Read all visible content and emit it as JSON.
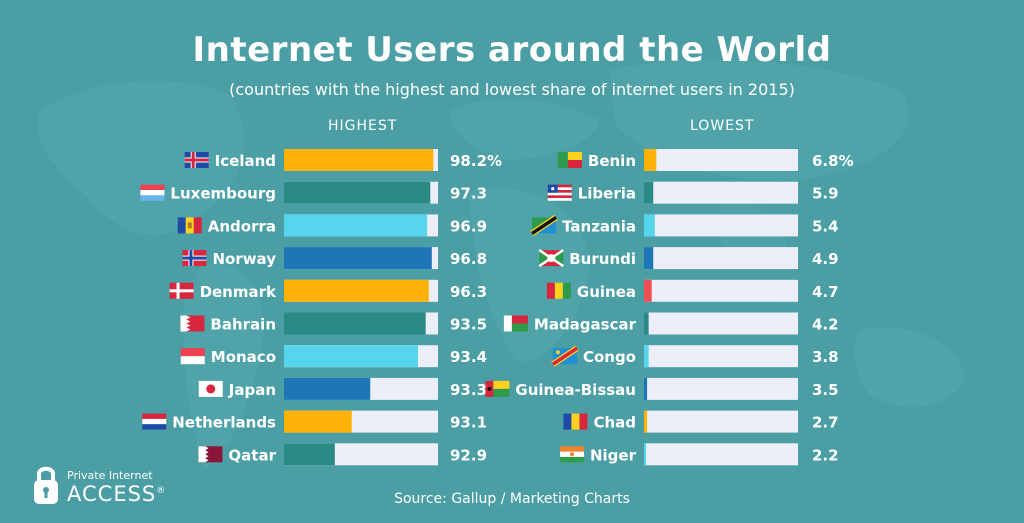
{
  "title": "Internet Users around the World",
  "subtitle": "(countries with the highest and lowest share of internet users in 2015)",
  "source": "Source: Gallup / Marketing Charts",
  "logo": {
    "line1": "Private Internet",
    "line2": "ACCESS",
    "mark": "®"
  },
  "colors": {
    "background": "#4a9ea4",
    "track": "#eceff7",
    "gold": "#ffb20a",
    "teal": "#2a8a86",
    "cyan": "#56d6ee",
    "blue": "#1e76b6",
    "red": "#f04f55"
  },
  "chart_data": [
    {
      "type": "bar",
      "orientation": "horizontal",
      "header": "HIGHEST",
      "xlim": [
        0,
        100
      ],
      "categories": [
        "Iceland",
        "Luxembourg",
        "Andorra",
        "Norway",
        "Denmark",
        "Bahrain",
        "Monaco",
        "Japan",
        "Netherlands",
        "Qatar"
      ],
      "values": [
        98.2,
        97.3,
        96.9,
        96.8,
        96.3,
        93.5,
        93.4,
        93.3,
        93.1,
        92.9
      ],
      "labels": [
        "98.2%",
        "97.3",
        "96.9",
        "96.8",
        "96.3",
        "93.5",
        "93.4",
        "93.3",
        "93.1",
        "92.9"
      ],
      "fill_fraction": [
        0.97,
        0.95,
        0.93,
        0.96,
        0.94,
        0.92,
        0.87,
        0.56,
        0.44,
        0.33
      ],
      "bar_colors": [
        "#ffb20a",
        "#2a8a86",
        "#56d6ee",
        "#1e76b6",
        "#ffb20a",
        "#2a8a86",
        "#56d6ee",
        "#1e76b6",
        "#ffb20a",
        "#2a8a86"
      ],
      "flags": [
        "iceland-flag",
        "luxembourg-flag",
        "andorra-flag",
        "norway-flag",
        "denmark-flag",
        "bahrain-flag",
        "monaco-flag",
        "japan-flag",
        "netherlands-flag",
        "qatar-flag"
      ]
    },
    {
      "type": "bar",
      "orientation": "horizontal",
      "header": "LOWEST",
      "xlim": [
        0,
        100
      ],
      "categories": [
        "Benin",
        "Liberia",
        "Tanzania",
        "Burundi",
        "Guinea",
        "Madagascar",
        "Congo",
        "Guinea-Bissau",
        "Chad",
        "Niger"
      ],
      "values": [
        6.8,
        5.9,
        5.4,
        4.9,
        4.7,
        4.2,
        3.8,
        3.5,
        2.7,
        2.2
      ],
      "labels": [
        "6.8%",
        "5.9",
        "5.4",
        "4.9",
        "4.7",
        "4.2",
        "3.8",
        "3.5",
        "2.7",
        "2.2"
      ],
      "fill_fraction": [
        0.08,
        0.06,
        0.07,
        0.06,
        0.05,
        0.03,
        0.03,
        0.02,
        0.02,
        0.01
      ],
      "bar_colors": [
        "#ffb20a",
        "#2a8a86",
        "#56d6ee",
        "#1e76b6",
        "#f04f55",
        "#2a8a86",
        "#56d6ee",
        "#1e76b6",
        "#ffb20a",
        "#56d6ee"
      ],
      "flags": [
        "benin-flag",
        "liberia-flag",
        "tanzania-flag",
        "burundi-flag",
        "guinea-flag",
        "madagascar-flag",
        "congo-flag",
        "guinea-bissau-flag",
        "chad-flag",
        "niger-flag"
      ]
    }
  ]
}
